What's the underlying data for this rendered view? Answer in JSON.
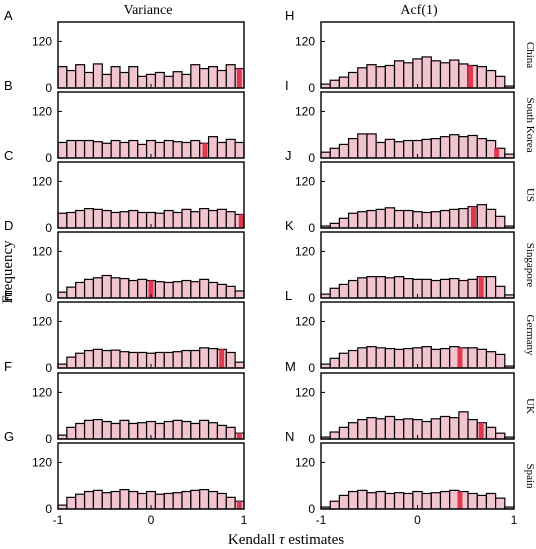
{
  "colors": {
    "bar_fill": "#f2c4cf",
    "bar_stroke": "#000000",
    "highlight": "#e0394f",
    "axis": "#000000"
  },
  "chart_data": {
    "type": "bar",
    "column_titles": [
      "Variance",
      "Acf(1)"
    ],
    "row_labels": [
      "China",
      "South Korea",
      "US",
      "Singapore",
      "Germany",
      "UK",
      "Spain"
    ],
    "panel_letters": [
      [
        "A",
        "B",
        "C",
        "D",
        "E",
        "F",
        "G"
      ],
      [
        "H",
        "I",
        "J",
        "K",
        "L",
        "M",
        "N"
      ]
    ],
    "ylabel": "Frequency",
    "xlabel_prefix": "Kendall ",
    "xlabel_symbol": "τ",
    "xlabel_suffix": " estimates",
    "xlim": [
      -1,
      1
    ],
    "ylim": [
      0,
      170
    ],
    "xticks": [
      -1,
      0,
      1
    ],
    "xtick_labels": [
      "-1",
      "0",
      "1"
    ],
    "yticks": [
      0,
      120
    ],
    "ytick_labels": [
      "0",
      "120"
    ],
    "bin_count": 21,
    "panels": [
      {
        "letter": "A",
        "column": "Variance",
        "country": "China",
        "values": [
          55,
          45,
          60,
          40,
          62,
          35,
          55,
          40,
          55,
          30,
          35,
          40,
          30,
          42,
          35,
          60,
          50,
          55,
          45,
          60,
          50
        ],
        "highlight_value": 0.95
      },
      {
        "letter": "B",
        "column": "Variance",
        "country": "South Korea",
        "values": [
          40,
          45,
          45,
          45,
          42,
          38,
          45,
          40,
          45,
          35,
          45,
          40,
          45,
          42,
          40,
          45,
          38,
          55,
          40,
          48,
          40
        ],
        "highlight_value": 0.58
      },
      {
        "letter": "C",
        "column": "Variance",
        "country": "US",
        "values": [
          38,
          40,
          45,
          50,
          48,
          45,
          40,
          42,
          45,
          40,
          40,
          38,
          45,
          40,
          48,
          42,
          50,
          45,
          48,
          42,
          35
        ],
        "highlight_value": 0.97
      },
      {
        "letter": "D",
        "column": "Variance",
        "country": "Singapore",
        "values": [
          15,
          28,
          40,
          48,
          52,
          58,
          52,
          50,
          45,
          48,
          45,
          42,
          40,
          42,
          45,
          42,
          48,
          40,
          35,
          30,
          18
        ],
        "highlight_value": 0.0
      },
      {
        "letter": "E",
        "column": "Variance",
        "country": "Germany",
        "values": [
          10,
          28,
          38,
          45,
          48,
          45,
          46,
          42,
          40,
          40,
          38,
          40,
          40,
          42,
          45,
          45,
          52,
          50,
          48,
          40,
          15
        ],
        "highlight_value": 0.76
      },
      {
        "letter": "F",
        "column": "Variance",
        "country": "UK",
        "values": [
          10,
          30,
          40,
          48,
          50,
          45,
          40,
          48,
          40,
          42,
          45,
          40,
          45,
          48,
          45,
          40,
          48,
          42,
          35,
          30,
          15
        ],
        "highlight_value": 0.95
      },
      {
        "letter": "G",
        "column": "Variance",
        "country": "Spain",
        "values": [
          10,
          30,
          38,
          45,
          48,
          42,
          45,
          50,
          45,
          40,
          45,
          38,
          40,
          42,
          45,
          48,
          50,
          45,
          40,
          30,
          20
        ],
        "highlight_value": 0.95
      },
      {
        "letter": "H",
        "column": "Acf(1)",
        "country": "China",
        "values": [
          10,
          20,
          28,
          40,
          52,
          60,
          55,
          58,
          70,
          65,
          75,
          80,
          70,
          65,
          72,
          62,
          58,
          55,
          45,
          30,
          5
        ],
        "highlight_value": 0.55
      },
      {
        "letter": "I",
        "column": "Acf(1)",
        "country": "South Korea",
        "values": [
          15,
          25,
          35,
          50,
          62,
          62,
          40,
          48,
          42,
          45,
          45,
          48,
          50,
          55,
          60,
          55,
          58,
          50,
          45,
          25,
          10
        ],
        "highlight_value": 0.82
      },
      {
        "letter": "J",
        "column": "Acf(1)",
        "country": "US",
        "values": [
          5,
          12,
          25,
          38,
          42,
          45,
          48,
          52,
          45,
          45,
          42,
          40,
          42,
          45,
          48,
          50,
          55,
          60,
          48,
          30,
          5
        ],
        "highlight_value": 0.58
      },
      {
        "letter": "K",
        "column": "Acf(1)",
        "country": "Singapore",
        "values": [
          10,
          25,
          35,
          45,
          52,
          55,
          55,
          52,
          55,
          50,
          48,
          48,
          45,
          48,
          50,
          45,
          48,
          55,
          55,
          30,
          8
        ],
        "highlight_value": 0.66
      },
      {
        "letter": "L",
        "column": "Acf(1)",
        "country": "Germany",
        "values": [
          10,
          25,
          38,
          45,
          52,
          55,
          52,
          50,
          48,
          50,
          52,
          55,
          48,
          50,
          55,
          52,
          52,
          48,
          42,
          35,
          5
        ],
        "highlight_value": 0.44
      },
      {
        "letter": "M",
        "column": "Acf(1)",
        "country": "UK",
        "values": [
          5,
          18,
          30,
          42,
          50,
          55,
          52,
          58,
          50,
          52,
          50,
          45,
          52,
          58,
          55,
          70,
          50,
          42,
          30,
          15,
          5
        ],
        "highlight_value": 0.66
      },
      {
        "letter": "N",
        "column": "Acf(1)",
        "country": "Spain",
        "values": [
          5,
          20,
          35,
          45,
          48,
          42,
          45,
          40,
          42,
          40,
          45,
          40,
          42,
          45,
          48,
          45,
          40,
          35,
          40,
          28,
          5
        ],
        "highlight_value": 0.44
      }
    ]
  }
}
